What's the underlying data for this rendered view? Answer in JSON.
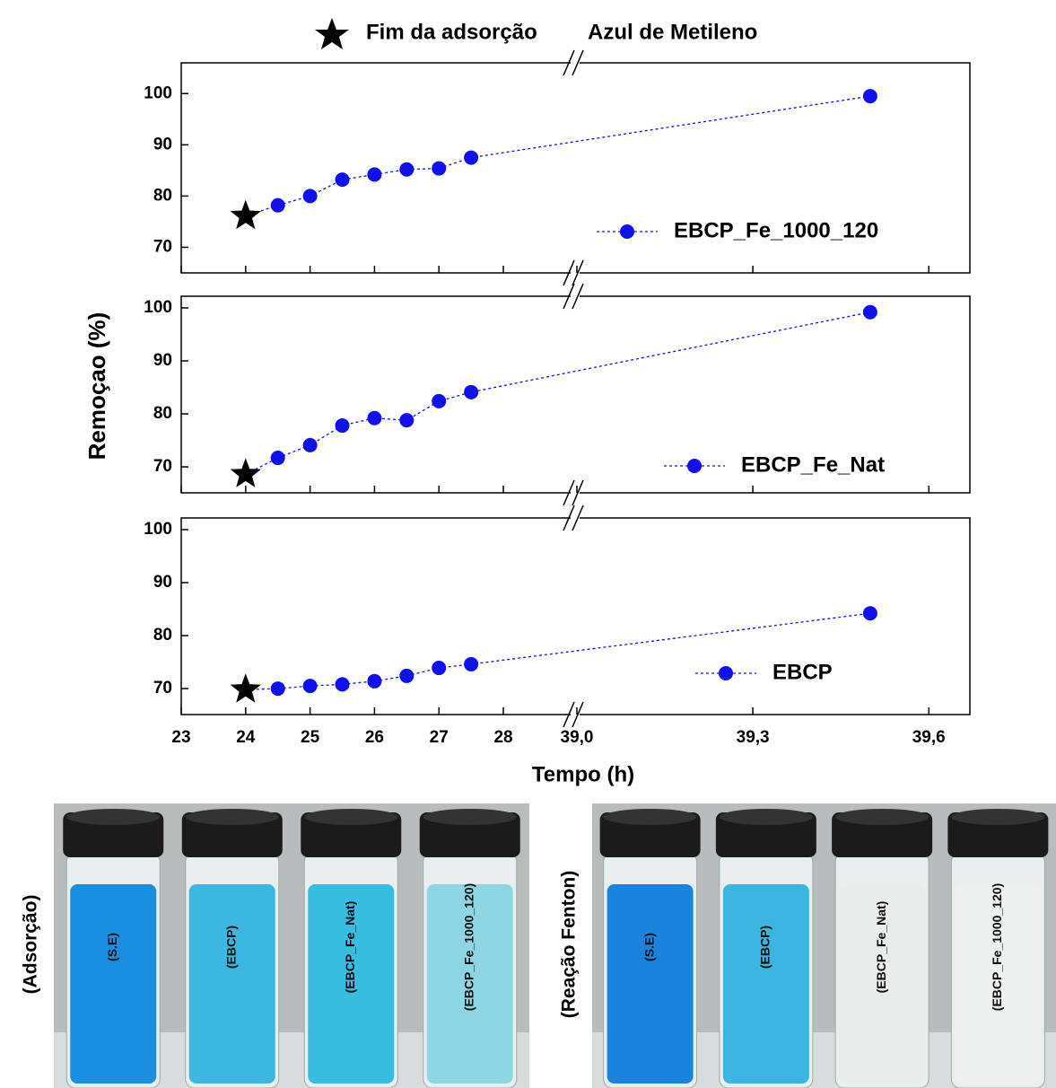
{
  "chart_data": [
    {
      "type": "line",
      "ylim": [
        65,
        106
      ],
      "yticks": [
        70,
        80,
        90,
        100
      ],
      "series": [
        {
          "name": "EBCP_Fe_1000_120",
          "color": "#1010ee",
          "x": [
            24.5,
            25,
            25.5,
            26,
            26.5,
            27,
            27.5,
            39.5
          ],
          "values": [
            78.2,
            80,
            83.2,
            84.2,
            85.2,
            85.4,
            87.5,
            99.5
          ]
        }
      ],
      "star": {
        "x": 24,
        "y": 76.1
      }
    },
    {
      "type": "line",
      "ylim": [
        65.1,
        102.2
      ],
      "yticks": [
        70,
        80,
        90,
        100
      ],
      "series": [
        {
          "name": "EBCP_Fe_Nat",
          "color": "#1010ee",
          "x": [
            24.5,
            25,
            25.5,
            26,
            26.5,
            27,
            27.5,
            39.5
          ],
          "values": [
            71.7,
            74.1,
            77.8,
            79.2,
            78.8,
            82.4,
            84.1,
            99.2
          ]
        }
      ],
      "star": {
        "x": 24,
        "y": 68.6
      }
    },
    {
      "type": "line",
      "ylim": [
        65.1,
        102.2
      ],
      "yticks": [
        70,
        80,
        90,
        100
      ],
      "series": [
        {
          "name": "EBCP",
          "color": "#1010ee",
          "x": [
            24.5,
            25,
            25.5,
            26,
            26.5,
            27,
            27.5,
            39.5
          ],
          "values": [
            70,
            70.5,
            70.8,
            71.4,
            72.4,
            73.9,
            74.6,
            84.2
          ]
        }
      ],
      "star": {
        "x": 24,
        "y": 69.8
      }
    }
  ],
  "figure": {
    "star_label": "Fim da adsorção",
    "title": "Azul de Metileno",
    "ylabel": "Remoçao (%)",
    "xlabel": "Tempo (h)",
    "x_segments": [
      {
        "xlim": [
          23,
          29.1
        ],
        "xticks": [
          23,
          24,
          25,
          26,
          27,
          28
        ]
      },
      {
        "xlim": [
          39.0,
          39.67
        ],
        "xticks": [
          {
            "value": 39.0,
            "label": "39,0"
          },
          {
            "value": 39.3,
            "label": "39,3"
          },
          {
            "value": 39.6,
            "label": "39,6"
          }
        ]
      }
    ]
  },
  "photos": [
    {
      "label": "(Adsorção)",
      "vials": [
        {
          "label": "(S.E)",
          "color": "#1a8ee0"
        },
        {
          "label": "(EBCP)",
          "color": "#3cb8e0"
        },
        {
          "label": "(EBCP_Fe_Nat)",
          "color": "#38bde0"
        },
        {
          "label": "(EBCP_Fe_1000_120)",
          "color": "#8fd6e4"
        }
      ]
    },
    {
      "label": "(Reação Fenton)",
      "vials": [
        {
          "label": "(S.E)",
          "color": "#1a84dc"
        },
        {
          "label": "(EBCP)",
          "color": "#3cb6e0"
        },
        {
          "label": "(EBCP_Fe_Nat)",
          "color": "#e8eceb"
        },
        {
          "label": "(EBCP_Fe_1000_120)",
          "color": "#eef0ef"
        }
      ]
    }
  ]
}
